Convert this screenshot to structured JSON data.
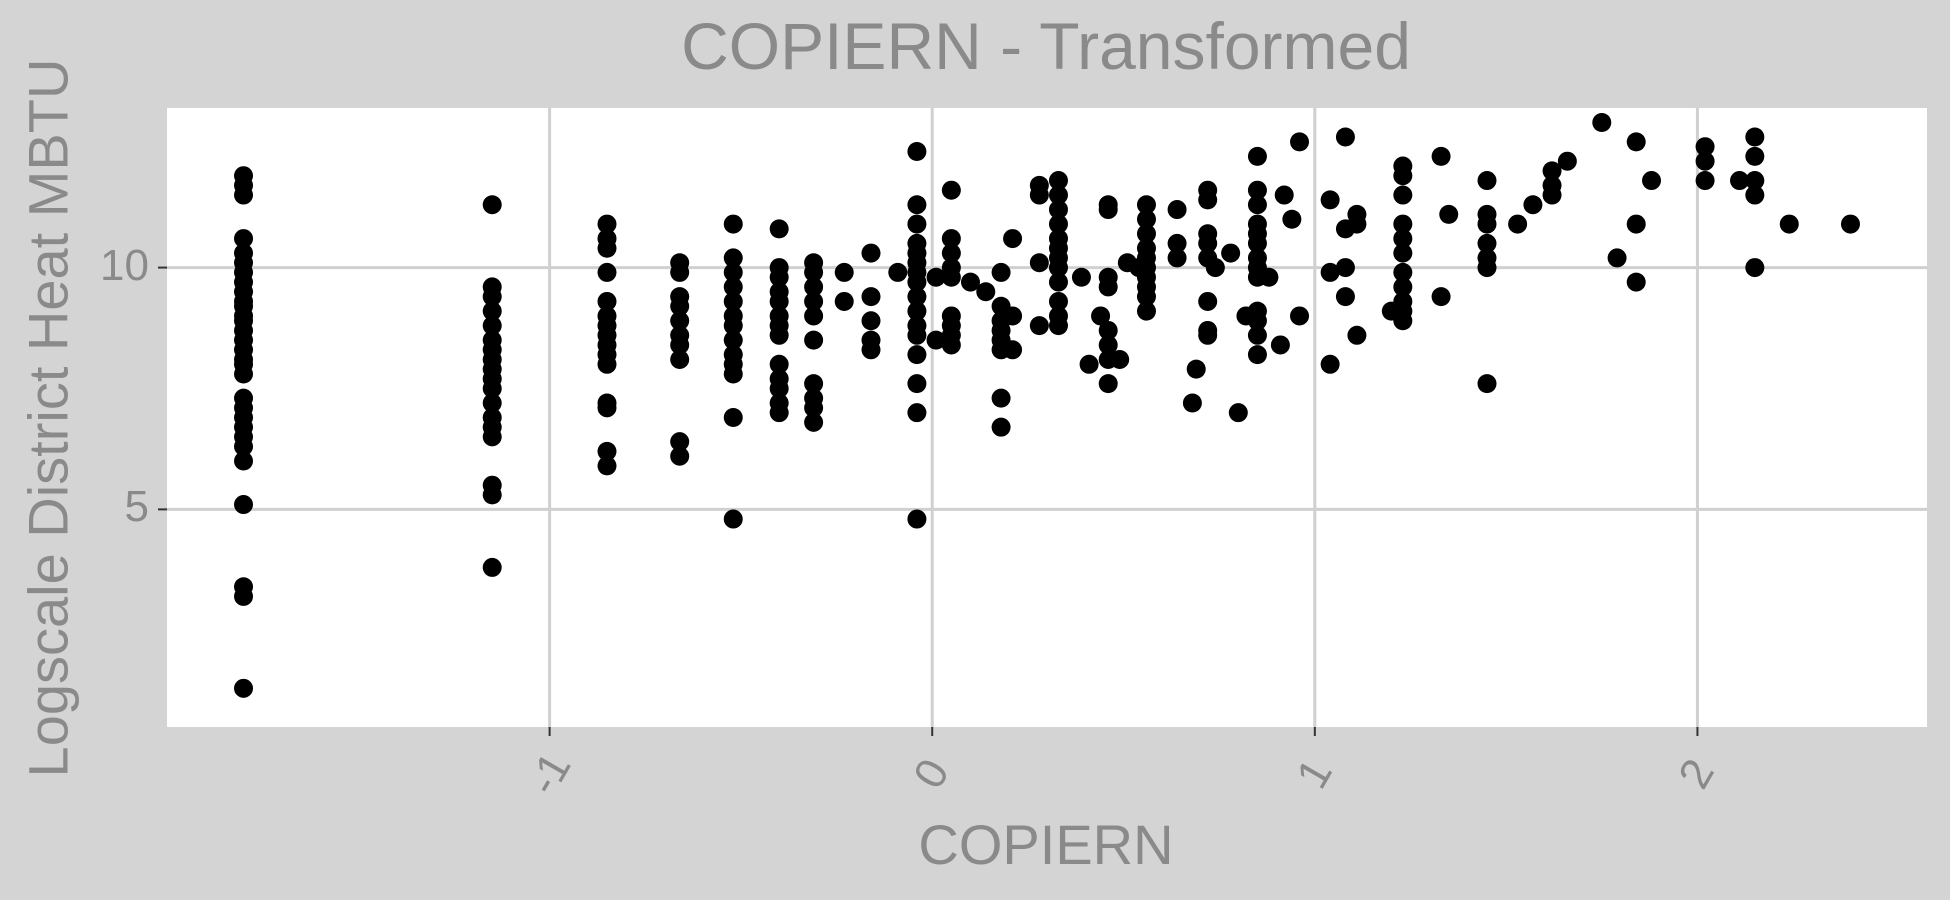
{
  "chart_data": {
    "type": "scatter",
    "title": "COPIERN - Transformed",
    "xlabel": "COPIERN",
    "ylabel": "Logscale District Heat MBTU",
    "xlim": [
      -2.0,
      2.6
    ],
    "ylim": [
      0.5,
      13.3
    ],
    "x_ticks": [
      -1,
      0,
      1,
      2
    ],
    "x_tick_labels": [
      "-1",
      "0",
      "1",
      "2"
    ],
    "y_ticks": [
      5,
      10
    ],
    "y_tick_labels": [
      "5",
      "10"
    ],
    "grid": true,
    "background": "#d4d4d4",
    "panel_background": "#ffffff",
    "grid_color": "#d0d0d0",
    "point_color": "#000000",
    "points": [
      [
        -1.8,
        11.9
      ],
      [
        -1.8,
        11.7
      ],
      [
        -1.8,
        11.5
      ],
      [
        -1.8,
        10.6
      ],
      [
        -1.8,
        10.3
      ],
      [
        -1.8,
        10.1
      ],
      [
        -1.8,
        9.9
      ],
      [
        -1.8,
        9.7
      ],
      [
        -1.8,
        9.5
      ],
      [
        -1.8,
        9.3
      ],
      [
        -1.8,
        9.2
      ],
      [
        -1.8,
        9.0
      ],
      [
        -1.8,
        8.9
      ],
      [
        -1.8,
        8.7
      ],
      [
        -1.8,
        8.5
      ],
      [
        -1.8,
        8.3
      ],
      [
        -1.8,
        8.1
      ],
      [
        -1.8,
        8.0
      ],
      [
        -1.8,
        7.8
      ],
      [
        -1.8,
        7.3
      ],
      [
        -1.8,
        7.1
      ],
      [
        -1.8,
        6.9
      ],
      [
        -1.8,
        6.7
      ],
      [
        -1.8,
        6.5
      ],
      [
        -1.8,
        6.3
      ],
      [
        -1.8,
        6.0
      ],
      [
        -1.8,
        5.1
      ],
      [
        -1.8,
        3.4
      ],
      [
        -1.8,
        3.2
      ],
      [
        -1.8,
        1.3
      ],
      [
        -1.15,
        11.3
      ],
      [
        -1.15,
        9.6
      ],
      [
        -1.15,
        9.4
      ],
      [
        -1.15,
        9.1
      ],
      [
        -1.15,
        8.8
      ],
      [
        -1.15,
        8.5
      ],
      [
        -1.15,
        8.3
      ],
      [
        -1.15,
        8.1
      ],
      [
        -1.15,
        7.9
      ],
      [
        -1.15,
        7.7
      ],
      [
        -1.15,
        7.5
      ],
      [
        -1.15,
        7.2
      ],
      [
        -1.15,
        6.9
      ],
      [
        -1.15,
        6.7
      ],
      [
        -1.15,
        6.5
      ],
      [
        -1.15,
        5.5
      ],
      [
        -1.15,
        5.3
      ],
      [
        -1.15,
        3.8
      ],
      [
        -0.85,
        10.9
      ],
      [
        -0.85,
        10.6
      ],
      [
        -0.85,
        10.4
      ],
      [
        -0.85,
        9.9
      ],
      [
        -0.85,
        9.3
      ],
      [
        -0.85,
        9.0
      ],
      [
        -0.85,
        8.8
      ],
      [
        -0.85,
        8.6
      ],
      [
        -0.85,
        8.4
      ],
      [
        -0.85,
        8.2
      ],
      [
        -0.85,
        8.0
      ],
      [
        -0.85,
        7.2
      ],
      [
        -0.85,
        7.1
      ],
      [
        -0.85,
        6.2
      ],
      [
        -0.85,
        5.9
      ],
      [
        -0.66,
        10.1
      ],
      [
        -0.66,
        9.9
      ],
      [
        -0.66,
        9.4
      ],
      [
        -0.66,
        9.2
      ],
      [
        -0.66,
        8.9
      ],
      [
        -0.66,
        8.6
      ],
      [
        -0.66,
        8.4
      ],
      [
        -0.66,
        8.1
      ],
      [
        -0.66,
        6.4
      ],
      [
        -0.66,
        6.1
      ],
      [
        -0.52,
        10.9
      ],
      [
        -0.52,
        10.2
      ],
      [
        -0.52,
        9.9
      ],
      [
        -0.52,
        9.6
      ],
      [
        -0.52,
        9.3
      ],
      [
        -0.52,
        9.0
      ],
      [
        -0.52,
        8.8
      ],
      [
        -0.52,
        8.5
      ],
      [
        -0.52,
        8.2
      ],
      [
        -0.52,
        8.0
      ],
      [
        -0.52,
        7.8
      ],
      [
        -0.52,
        6.9
      ],
      [
        -0.52,
        4.8
      ],
      [
        -0.4,
        10.8
      ],
      [
        -0.4,
        10.0
      ],
      [
        -0.4,
        9.8
      ],
      [
        -0.4,
        9.5
      ],
      [
        -0.4,
        9.3
      ],
      [
        -0.4,
        9.0
      ],
      [
        -0.4,
        8.8
      ],
      [
        -0.4,
        8.6
      ],
      [
        -0.4,
        8.0
      ],
      [
        -0.4,
        7.7
      ],
      [
        -0.4,
        7.5
      ],
      [
        -0.4,
        7.2
      ],
      [
        -0.4,
        7.0
      ],
      [
        -0.31,
        10.1
      ],
      [
        -0.31,
        9.9
      ],
      [
        -0.31,
        9.6
      ],
      [
        -0.31,
        9.3
      ],
      [
        -0.31,
        9.0
      ],
      [
        -0.31,
        8.5
      ],
      [
        -0.31,
        7.6
      ],
      [
        -0.31,
        7.3
      ],
      [
        -0.31,
        7.1
      ],
      [
        -0.31,
        6.8
      ],
      [
        -0.23,
        9.9
      ],
      [
        -0.23,
        9.3
      ],
      [
        -0.16,
        10.3
      ],
      [
        -0.16,
        9.4
      ],
      [
        -0.16,
        8.9
      ],
      [
        -0.16,
        8.5
      ],
      [
        -0.16,
        8.3
      ],
      [
        -0.09,
        9.9
      ],
      [
        -0.04,
        12.4
      ],
      [
        -0.04,
        11.3
      ],
      [
        -0.04,
        10.9
      ],
      [
        -0.04,
        10.5
      ],
      [
        -0.04,
        10.3
      ],
      [
        -0.04,
        10.1
      ],
      [
        -0.04,
        9.9
      ],
      [
        -0.04,
        9.7
      ],
      [
        -0.04,
        9.4
      ],
      [
        -0.04,
        9.1
      ],
      [
        -0.04,
        8.8
      ],
      [
        -0.04,
        8.6
      ],
      [
        -0.04,
        8.2
      ],
      [
        -0.04,
        7.6
      ],
      [
        -0.04,
        7.0
      ],
      [
        -0.04,
        4.8
      ],
      [
        0.01,
        9.8
      ],
      [
        0.01,
        8.5
      ],
      [
        0.05,
        11.6
      ],
      [
        0.05,
        10.6
      ],
      [
        0.05,
        10.3
      ],
      [
        0.05,
        10.0
      ],
      [
        0.05,
        9.8
      ],
      [
        0.05,
        9.0
      ],
      [
        0.05,
        8.8
      ],
      [
        0.05,
        8.6
      ],
      [
        0.05,
        8.4
      ],
      [
        0.1,
        9.7
      ],
      [
        0.14,
        9.5
      ],
      [
        0.18,
        9.9
      ],
      [
        0.18,
        9.2
      ],
      [
        0.18,
        8.9
      ],
      [
        0.18,
        8.7
      ],
      [
        0.18,
        8.5
      ],
      [
        0.18,
        8.3
      ],
      [
        0.18,
        7.3
      ],
      [
        0.18,
        6.7
      ],
      [
        0.21,
        10.6
      ],
      [
        0.21,
        9.0
      ],
      [
        0.21,
        8.3
      ],
      [
        0.28,
        11.7
      ],
      [
        0.28,
        11.5
      ],
      [
        0.28,
        10.1
      ],
      [
        0.28,
        8.8
      ],
      [
        0.33,
        11.8
      ],
      [
        0.33,
        11.5
      ],
      [
        0.33,
        11.2
      ],
      [
        0.33,
        10.9
      ],
      [
        0.33,
        10.6
      ],
      [
        0.33,
        10.4
      ],
      [
        0.33,
        10.2
      ],
      [
        0.33,
        10.0
      ],
      [
        0.33,
        9.7
      ],
      [
        0.33,
        9.3
      ],
      [
        0.33,
        9.0
      ],
      [
        0.33,
        8.8
      ],
      [
        0.39,
        9.8
      ],
      [
        0.41,
        8.0
      ],
      [
        0.44,
        9.0
      ],
      [
        0.46,
        11.3
      ],
      [
        0.46,
        11.2
      ],
      [
        0.46,
        9.8
      ],
      [
        0.46,
        9.6
      ],
      [
        0.46,
        8.7
      ],
      [
        0.46,
        8.4
      ],
      [
        0.46,
        8.1
      ],
      [
        0.46,
        7.6
      ],
      [
        0.49,
        8.1
      ],
      [
        0.51,
        10.1
      ],
      [
        0.54,
        10.0
      ],
      [
        0.56,
        11.3
      ],
      [
        0.56,
        11.0
      ],
      [
        0.56,
        10.7
      ],
      [
        0.56,
        10.4
      ],
      [
        0.56,
        10.2
      ],
      [
        0.56,
        10.0
      ],
      [
        0.56,
        9.8
      ],
      [
        0.56,
        9.6
      ],
      [
        0.56,
        9.4
      ],
      [
        0.56,
        9.1
      ],
      [
        0.64,
        11.2
      ],
      [
        0.64,
        10.5
      ],
      [
        0.64,
        10.2
      ],
      [
        0.68,
        7.2
      ],
      [
        0.69,
        7.9
      ],
      [
        0.72,
        11.6
      ],
      [
        0.72,
        11.4
      ],
      [
        0.72,
        10.7
      ],
      [
        0.72,
        10.5
      ],
      [
        0.72,
        10.2
      ],
      [
        0.72,
        9.3
      ],
      [
        0.72,
        8.7
      ],
      [
        0.72,
        8.6
      ],
      [
        0.74,
        10.0
      ],
      [
        0.78,
        10.3
      ],
      [
        0.8,
        7.0
      ],
      [
        0.82,
        9.0
      ],
      [
        0.85,
        12.3
      ],
      [
        0.85,
        11.6
      ],
      [
        0.85,
        11.3
      ],
      [
        0.85,
        10.9
      ],
      [
        0.85,
        10.7
      ],
      [
        0.85,
        10.5
      ],
      [
        0.85,
        10.2
      ],
      [
        0.85,
        10.0
      ],
      [
        0.85,
        9.8
      ],
      [
        0.85,
        9.1
      ],
      [
        0.85,
        8.9
      ],
      [
        0.85,
        8.6
      ],
      [
        0.85,
        8.2
      ],
      [
        0.88,
        9.8
      ],
      [
        0.91,
        8.4
      ],
      [
        0.92,
        11.5
      ],
      [
        0.94,
        11.0
      ],
      [
        0.96,
        12.6
      ],
      [
        0.96,
        9.0
      ],
      [
        1.04,
        11.4
      ],
      [
        1.04,
        9.9
      ],
      [
        1.04,
        8.0
      ],
      [
        1.08,
        12.7
      ],
      [
        1.08,
        10.8
      ],
      [
        1.08,
        10.0
      ],
      [
        1.08,
        9.4
      ],
      [
        1.11,
        11.1
      ],
      [
        1.11,
        10.9
      ],
      [
        1.11,
        8.6
      ],
      [
        1.2,
        9.1
      ],
      [
        1.23,
        12.1
      ],
      [
        1.23,
        11.9
      ],
      [
        1.23,
        11.5
      ],
      [
        1.23,
        10.9
      ],
      [
        1.23,
        10.6
      ],
      [
        1.23,
        10.3
      ],
      [
        1.23,
        9.9
      ],
      [
        1.23,
        9.6
      ],
      [
        1.23,
        9.3
      ],
      [
        1.23,
        9.1
      ],
      [
        1.23,
        8.9
      ],
      [
        1.33,
        12.3
      ],
      [
        1.33,
        9.4
      ],
      [
        1.35,
        11.1
      ],
      [
        1.45,
        11.8
      ],
      [
        1.45,
        11.1
      ],
      [
        1.45,
        10.9
      ],
      [
        1.45,
        10.5
      ],
      [
        1.45,
        10.2
      ],
      [
        1.45,
        10.0
      ],
      [
        1.45,
        7.6
      ],
      [
        1.53,
        10.9
      ],
      [
        1.57,
        11.3
      ],
      [
        1.62,
        12.0
      ],
      [
        1.62,
        11.7
      ],
      [
        1.62,
        11.5
      ],
      [
        1.66,
        12.2
      ],
      [
        1.75,
        13.0
      ],
      [
        1.79,
        10.2
      ],
      [
        1.84,
        12.6
      ],
      [
        1.84,
        10.9
      ],
      [
        1.84,
        9.7
      ],
      [
        1.88,
        11.8
      ],
      [
        2.02,
        12.5
      ],
      [
        2.02,
        12.2
      ],
      [
        2.02,
        11.8
      ],
      [
        2.11,
        11.8
      ],
      [
        2.15,
        12.7
      ],
      [
        2.15,
        12.3
      ],
      [
        2.15,
        11.8
      ],
      [
        2.15,
        11.5
      ],
      [
        2.15,
        10.0
      ],
      [
        2.24,
        10.9
      ],
      [
        2.4,
        10.9
      ]
    ]
  }
}
